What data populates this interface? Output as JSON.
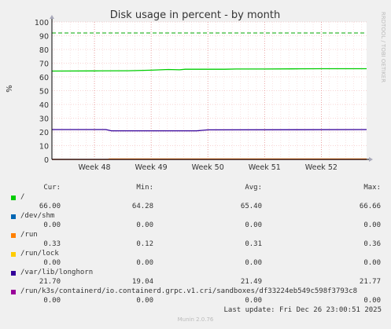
{
  "chart_data": {
    "type": "line",
    "title": "Disk usage in percent - by month",
    "ylabel": "%",
    "side_label": "RRDTOOL / TOBI OETIKER",
    "ylim": [
      0,
      100
    ],
    "yticks": [
      0,
      10,
      20,
      30,
      40,
      50,
      60,
      70,
      80,
      90,
      100
    ],
    "xlim": [
      47.25,
      52.8
    ],
    "xticks": [
      {
        "value": 48,
        "label": "Week 48"
      },
      {
        "value": 49,
        "label": "Week 49"
      },
      {
        "value": 50,
        "label": "Week 50"
      },
      {
        "value": 51,
        "label": "Week 51"
      },
      {
        "value": 52,
        "label": "Week 52"
      }
    ],
    "grid": true,
    "warning_line": {
      "value": 92,
      "color": "#00aa00",
      "style": "dashed"
    },
    "series": [
      {
        "name": "/",
        "color": "#00cc00",
        "points": [
          [
            47.25,
            64.3
          ],
          [
            48.0,
            64.4
          ],
          [
            48.6,
            64.5
          ],
          [
            49.0,
            64.9
          ],
          [
            49.3,
            65.4
          ],
          [
            49.5,
            65.2
          ],
          [
            49.6,
            65.6
          ],
          [
            50.3,
            65.6
          ],
          [
            50.5,
            65.8
          ],
          [
            51.0,
            65.8
          ],
          [
            51.5,
            65.9
          ],
          [
            52.0,
            66.0
          ],
          [
            52.8,
            66.0
          ]
        ]
      },
      {
        "name": "/dev/shm",
        "color": "#0066b3",
        "points": [
          [
            47.25,
            0
          ],
          [
            52.8,
            0
          ]
        ]
      },
      {
        "name": "/run",
        "color": "#ff8000",
        "points": [
          [
            47.25,
            0
          ],
          [
            48.24,
            0
          ],
          [
            48.26,
            0.33
          ],
          [
            52.8,
            0.33
          ]
        ]
      },
      {
        "name": "/run/lock",
        "color": "#ffcc00",
        "points": [
          [
            47.25,
            0
          ],
          [
            52.8,
            0
          ]
        ]
      },
      {
        "name": "/var/lib/longhorn",
        "color": "#330099",
        "points": [
          [
            47.25,
            21.7
          ],
          [
            48.2,
            21.7
          ],
          [
            48.3,
            20.8
          ],
          [
            49.8,
            20.8
          ],
          [
            50.0,
            21.5
          ],
          [
            52.8,
            21.7
          ]
        ]
      },
      {
        "name": "/run/k3s/containerd/io.containerd.grpc.v1.cri/sandboxes/df33224eb549c598f3793c8",
        "color": "#990099",
        "points": [
          [
            47.25,
            0
          ],
          [
            52.8,
            0
          ]
        ]
      }
    ],
    "legend": {
      "headers": {
        "cur": "Cur:",
        "min": "Min:",
        "avg": "Avg:",
        "max": "Max:"
      },
      "rows": [
        {
          "name": "/",
          "color": "#00cc00",
          "cur": "66.00",
          "min": "64.28",
          "avg": "65.40",
          "max": "66.66"
        },
        {
          "name": "/dev/shm",
          "color": "#0066b3",
          "cur": "0.00",
          "min": "0.00",
          "avg": "0.00",
          "max": "0.00"
        },
        {
          "name": "/run",
          "color": "#ff8000",
          "cur": "0.33",
          "min": "0.12",
          "avg": "0.31",
          "max": "0.36"
        },
        {
          "name": "/run/lock",
          "color": "#ffcc00",
          "cur": "0.00",
          "min": "0.00",
          "avg": "0.00",
          "max": "0.00"
        },
        {
          "name": "/var/lib/longhorn",
          "color": "#330099",
          "cur": "21.70",
          "min": "19.04",
          "avg": "21.49",
          "max": "21.77"
        },
        {
          "name": "/run/k3s/containerd/io.containerd.grpc.v1.cri/sandboxes/df33224eb549c598f3793c8",
          "color": "#990099",
          "cur": "0.00",
          "min": "0.00",
          "avg": "0.00",
          "max": "0.00"
        }
      ]
    },
    "last_update": "Last update: Fri Dec 26 23:00:51 2025",
    "footer": "Munin 2.0.76"
  }
}
